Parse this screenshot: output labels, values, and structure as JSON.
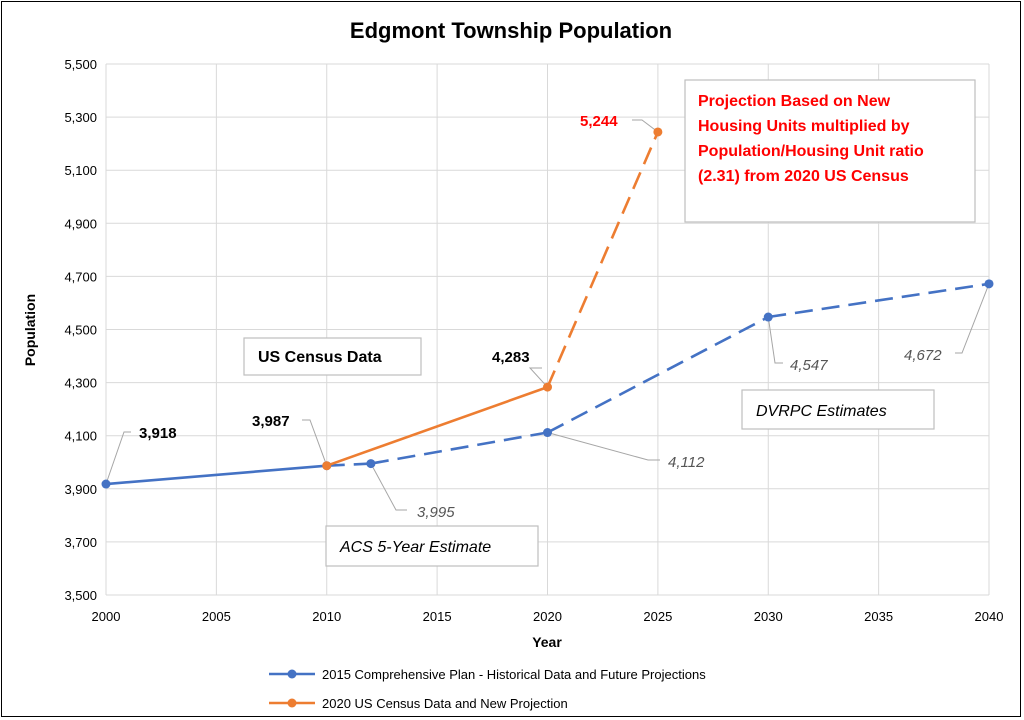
{
  "chart_data": {
    "type": "line",
    "title": "Edgmont Township Population",
    "xlabel": "Year",
    "ylabel": "Population",
    "xlim": [
      2000,
      2040
    ],
    "ylim": [
      3500,
      5500
    ],
    "x_ticks": [
      2000,
      2005,
      2010,
      2015,
      2020,
      2025,
      2030,
      2035,
      2040
    ],
    "y_ticks": [
      3500,
      3700,
      3900,
      4100,
      4300,
      4500,
      4700,
      4900,
      5100,
      5300,
      5500
    ],
    "x_tick_labels": [
      "2000",
      "2005",
      "2010",
      "2015",
      "2020",
      "2025",
      "2030",
      "2035",
      "2040"
    ],
    "y_tick_labels": [
      "3,500",
      "3,700",
      "3,900",
      "4,100",
      "4,300",
      "4,500",
      "4,700",
      "4,900",
      "5,100",
      "5,300",
      "5,500"
    ],
    "grid": true,
    "legend_position": "bottom",
    "series": [
      {
        "name": "2015 Comprehensive Plan - Historical Data and Future Projections",
        "color": "#4472c4",
        "x": [
          2000,
          2010,
          2012,
          2020,
          2030,
          2040
        ],
        "values": [
          3918,
          3987,
          3995,
          4112,
          4547,
          4672
        ],
        "labels": [
          "3,918",
          "3,987",
          "3,995",
          "4,112",
          "4,547",
          "4,672"
        ],
        "dashed_from_index": 1
      },
      {
        "name": "2020 US Census Data and New Projection",
        "color": "#ed7d31",
        "x": [
          2010,
          2020,
          2025
        ],
        "values": [
          3987,
          4283,
          5244
        ],
        "labels": [
          "",
          "4,283",
          "5,244"
        ],
        "dashed_from_index": 1
      }
    ],
    "annotations": {
      "census_box": "US Census Data",
      "acs_box": "ACS 5-Year Estimate",
      "dvrpc_box": "DVRPC Estimates",
      "projection_note": [
        "Projection Based on New",
        "Housing Units multiplied by",
        "Population/Housing Unit ratio",
        "(2.31) from 2020 US Census"
      ]
    }
  }
}
